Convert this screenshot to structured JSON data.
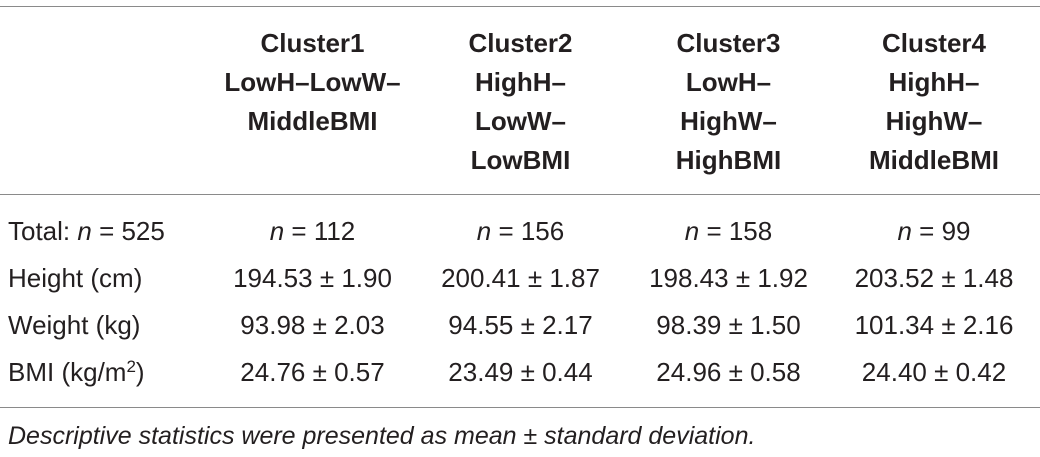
{
  "table": {
    "columns": [
      {
        "lines": [
          "Cluster1",
          "LowH–LowW–",
          "MiddleBMI"
        ]
      },
      {
        "lines": [
          "Cluster2",
          "HighH–",
          "LowW–",
          "LowBMI"
        ]
      },
      {
        "lines": [
          "Cluster3",
          "LowH–",
          "HighW–",
          "HighBMI"
        ]
      },
      {
        "lines": [
          "Cluster4",
          "HighH–",
          "HighW–",
          "MiddleBMI"
        ]
      }
    ],
    "total_row": {
      "label_prefix": "Total: ",
      "n_symbol": "n",
      "label_suffix": " = 525",
      "cells": [
        " = 112",
        " = 156",
        " = 158",
        " = 99"
      ]
    },
    "rows": [
      {
        "label": "Height (cm)",
        "cells": [
          "194.53 ± 1.90",
          "200.41 ± 1.87",
          "198.43 ± 1.92",
          "203.52 ± 1.48"
        ]
      },
      {
        "label": "Weight (kg)",
        "cells": [
          "93.98 ± 2.03",
          "94.55 ± 2.17",
          "98.39 ± 1.50",
          "101.34 ± 2.16"
        ]
      },
      {
        "label_main": "BMI (kg/m",
        "label_sup": "2",
        "label_end": ")",
        "cells": [
          "24.76 ± 0.57",
          "23.49 ± 0.44",
          "24.96 ± 0.58",
          "24.40 ± 0.42"
        ]
      }
    ]
  },
  "footnote": "Descriptive statistics were presented as mean ± standard deviation.",
  "colors": {
    "text": "#231f20",
    "rule": "#8a8a8a",
    "background": "#ffffff"
  }
}
